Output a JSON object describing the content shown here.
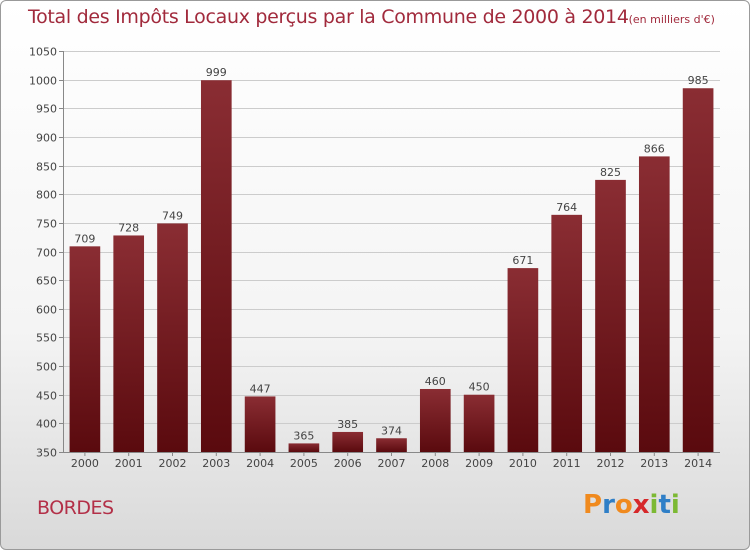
{
  "title": {
    "main": "Total des Impôts Locaux perçus par la Commune de 2000 à 2014",
    "unit": "(en milliers d'€)"
  },
  "commune": "BORDES",
  "logo": {
    "letters": [
      "P",
      "r",
      "o",
      "x",
      "i",
      "t",
      "i"
    ],
    "colors": [
      "#f08a1e",
      "#2f7fc7",
      "#f08a1e",
      "#d6282a",
      "#7cb933",
      "#2f7fc7",
      "#7cb933"
    ]
  },
  "colors": {
    "bar_top": "#8a2d33",
    "bar_bottom": "#5a0a0e",
    "grid": "#cccccc",
    "text": "#444444"
  },
  "chart_data": {
    "type": "bar",
    "categories": [
      "2000",
      "2001",
      "2002",
      "2003",
      "2004",
      "2005",
      "2006",
      "2007",
      "2008",
      "2009",
      "2010",
      "2011",
      "2012",
      "2013",
      "2014"
    ],
    "values": [
      709,
      728,
      749,
      999,
      447,
      365,
      385,
      374,
      460,
      450,
      671,
      764,
      825,
      866,
      985
    ],
    "data_labels": [
      "709",
      "728",
      "749",
      "999",
      "447",
      "365",
      "385",
      "374",
      "460",
      "450",
      "671",
      "764",
      "825",
      "866",
      "985"
    ],
    "yticks": [
      350,
      400,
      450,
      500,
      550,
      600,
      650,
      700,
      750,
      800,
      850,
      900,
      950,
      1000,
      1050
    ],
    "ytick_labels": [
      "350",
      "400",
      "450",
      "500",
      "550",
      "600",
      "650",
      "700",
      "750",
      "800",
      "850",
      "900",
      "950",
      "1000",
      "1050"
    ],
    "ylim": [
      350,
      1050
    ],
    "title": "Total des Impôts Locaux perçus par la Commune de 2000 à 2014",
    "xlabel": "",
    "ylabel": "",
    "grid": true,
    "legend": "none"
  }
}
